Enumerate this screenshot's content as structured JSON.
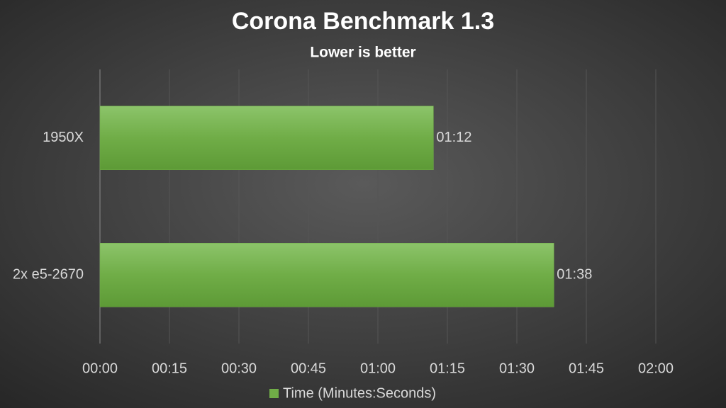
{
  "chart_data": {
    "type": "bar",
    "orientation": "horizontal",
    "title": "Corona Benchmark 1.3",
    "subtitle": "Lower is better",
    "categories": [
      "1950X",
      "2x e5-2670"
    ],
    "series": [
      {
        "name": "Time (Minutes:Seconds)",
        "color": "#70ad47",
        "values": [
          72,
          98
        ],
        "value_labels": [
          "01:12",
          "01:38"
        ]
      }
    ],
    "xlim": [
      0,
      120
    ],
    "xticks": [
      {
        "value": 0,
        "label": "00:00"
      },
      {
        "value": 15,
        "label": "00:15"
      },
      {
        "value": 30,
        "label": "00:30"
      },
      {
        "value": 45,
        "label": "00:45"
      },
      {
        "value": 60,
        "label": "01:00"
      },
      {
        "value": 75,
        "label": "01:15"
      },
      {
        "value": 90,
        "label": "01:30"
      },
      {
        "value": 105,
        "label": "01:45"
      },
      {
        "value": 120,
        "label": "02:00"
      }
    ],
    "grid": true,
    "legend": "bottom"
  }
}
